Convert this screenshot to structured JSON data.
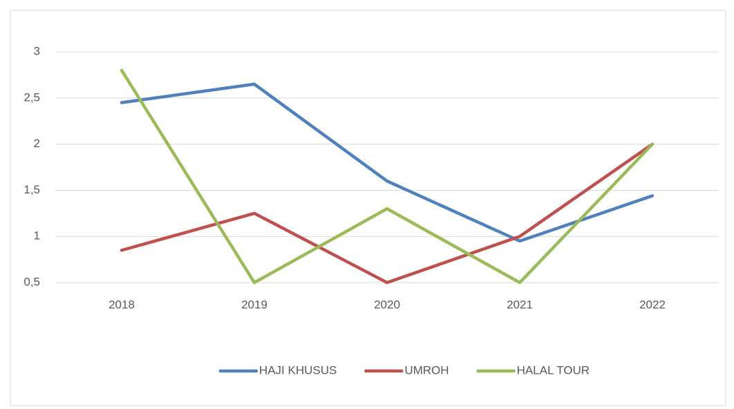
{
  "chart_data": {
    "type": "line",
    "categories": [
      "2018",
      "2019",
      "2020",
      "2021",
      "2022"
    ],
    "series": [
      {
        "name": "HAJI KHUSUS",
        "color": "#4f81bd",
        "values": [
          2.45,
          2.65,
          1.6,
          0.95,
          1.44
        ]
      },
      {
        "name": "UMROH",
        "color": "#c0504d",
        "values": [
          0.85,
          1.25,
          0.5,
          1.0,
          2.0
        ]
      },
      {
        "name": "HALAL TOUR",
        "color": "#9bbb59",
        "values": [
          2.8,
          0.5,
          1.3,
          0.5,
          2.0
        ]
      }
    ],
    "ylim": [
      0.5,
      3.4
    ],
    "yticks": [
      {
        "value": 0.5,
        "label": "0,5"
      },
      1,
      {
        "value": 1.5,
        "label": "1,5"
      },
      2,
      {
        "value": 2.5,
        "label": "2,5"
      },
      3
    ],
    "grid": true,
    "legend": "bottom"
  }
}
